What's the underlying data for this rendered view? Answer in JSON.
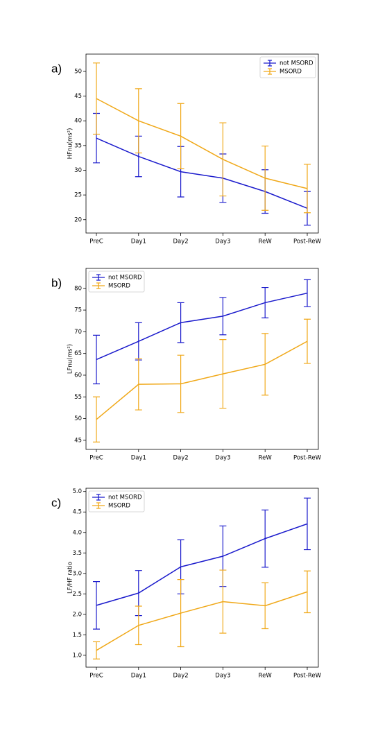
{
  "chart_data": [
    {
      "type": "line",
      "label": "a)",
      "ylabel": "HFnu(ms²)",
      "legend": "upper right",
      "categories": [
        "PreC",
        "Day1",
        "Day2",
        "Day3",
        "ReW",
        "Post-ReW"
      ],
      "ylim": [
        17.3,
        53.5
      ],
      "yticks": [
        20,
        25,
        30,
        35,
        40,
        45,
        50
      ],
      "series": [
        {
          "name": "not MSORD",
          "color": "#1a1acc",
          "values": [
            36.5,
            32.8,
            29.7,
            28.4,
            25.7,
            22.3
          ],
          "errors": [
            5.0,
            4.1,
            5.1,
            4.9,
            4.4,
            3.4
          ]
        },
        {
          "name": "MSORD",
          "color": "#f0a818",
          "values": [
            44.5,
            40.0,
            36.9,
            32.2,
            28.4,
            26.3
          ],
          "errors": [
            7.2,
            6.5,
            6.6,
            7.4,
            6.5,
            4.9
          ]
        }
      ]
    },
    {
      "type": "line",
      "label": "b)",
      "ylabel": "LFnu(ms²)",
      "legend": "upper left",
      "categories": [
        "PreC",
        "Day1",
        "Day2",
        "Day3",
        "ReW",
        "Post-ReW"
      ],
      "ylim": [
        42.9,
        84.6
      ],
      "yticks": [
        45,
        50,
        55,
        60,
        65,
        70,
        75,
        80
      ],
      "series": [
        {
          "name": "not MSORD",
          "color": "#1a1acc",
          "values": [
            63.6,
            67.8,
            72.1,
            73.6,
            76.7,
            78.9
          ],
          "errors": [
            5.6,
            4.3,
            4.6,
            4.3,
            3.5,
            3.1
          ]
        },
        {
          "name": "MSORD",
          "color": "#f0a818",
          "values": [
            49.8,
            57.9,
            58.0,
            60.3,
            62.5,
            67.8
          ],
          "errors": [
            5.2,
            5.9,
            6.6,
            7.9,
            7.1,
            5.1
          ]
        }
      ]
    },
    {
      "type": "line",
      "label": "c)",
      "ylabel": "LF/HF ratio",
      "legend": "upper left",
      "categories": [
        "PreC",
        "Day1",
        "Day2",
        "Day3",
        "ReW",
        "Post-ReW"
      ],
      "ylim": [
        0.71,
        5.08
      ],
      "yticks": [
        {
          "value": 1,
          "label": "1.0"
        },
        1.5,
        {
          "value": 2,
          "label": "2.0"
        },
        2.5,
        {
          "value": 3,
          "label": "3.0"
        },
        3.5,
        {
          "value": 4,
          "label": "4.0"
        },
        4.5,
        {
          "value": 5,
          "label": "5.0"
        }
      ],
      "series": [
        {
          "name": "not MSORD",
          "color": "#1a1acc",
          "values": [
            2.22,
            2.52,
            3.16,
            3.42,
            3.85,
            4.21
          ],
          "errors": [
            0.58,
            0.55,
            0.66,
            0.74,
            0.7,
            0.63
          ]
        },
        {
          "name": "MSORD",
          "color": "#f0a818",
          "values": [
            1.12,
            1.73,
            2.03,
            2.31,
            2.21,
            2.55
          ],
          "errors": [
            0.21,
            0.47,
            0.82,
            0.77,
            0.56,
            0.51
          ]
        }
      ]
    }
  ]
}
